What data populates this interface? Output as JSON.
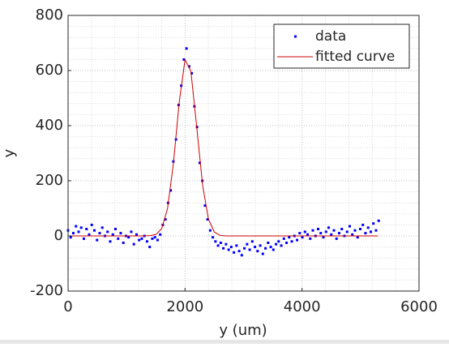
{
  "chart_data": {
    "type": "scatter",
    "xlabel": "y (um)",
    "ylabel": "y",
    "xlim": [
      0,
      6000
    ],
    "xticks": [
      0,
      2000,
      4000,
      6000
    ],
    "ylim": [
      -200,
      800
    ],
    "yticks": [
      -200,
      0,
      200,
      400,
      600,
      800
    ],
    "grid": true,
    "minor_grid": true,
    "legend": "upper right",
    "series": [
      {
        "name": "data",
        "color": "#0000ff",
        "style": "markers",
        "x": [
          0,
          45,
          90,
          135,
          180,
          225,
          270,
          315,
          360,
          405,
          450,
          495,
          540,
          585,
          630,
          675,
          720,
          765,
          810,
          855,
          900,
          945,
          990,
          1035,
          1080,
          1125,
          1170,
          1215,
          1260,
          1305,
          1350,
          1395,
          1440,
          1485,
          1530,
          1575,
          1620,
          1665,
          1710,
          1755,
          1800,
          1845,
          1890,
          1935,
          1980,
          2025,
          2070,
          2115,
          2160,
          2205,
          2250,
          2295,
          2340,
          2385,
          2430,
          2475,
          2520,
          2565,
          2610,
          2655,
          2700,
          2745,
          2790,
          2835,
          2880,
          2925,
          2970,
          3015,
          3060,
          3105,
          3150,
          3195,
          3240,
          3285,
          3330,
          3375,
          3420,
          3465,
          3510,
          3555,
          3600,
          3645,
          3690,
          3735,
          3780,
          3825,
          3870,
          3915,
          3960,
          4005,
          4050,
          4095,
          4140,
          4185,
          4230,
          4275,
          4320,
          4365,
          4410,
          4455,
          4500,
          4545,
          4590,
          4635,
          4680,
          4725,
          4770,
          4815,
          4860,
          4905,
          4950,
          4995,
          5040,
          5085,
          5130,
          5175,
          5220,
          5265,
          5310
        ],
        "values": [
          20,
          -5,
          10,
          35,
          15,
          30,
          -10,
          25,
          5,
          40,
          20,
          -15,
          10,
          30,
          0,
          15,
          -20,
          5,
          25,
          -10,
          10,
          -25,
          0,
          -5,
          15,
          -30,
          5,
          -15,
          -10,
          0,
          -20,
          -40,
          -10,
          -5,
          -15,
          5,
          40,
          60,
          120,
          165,
          270,
          350,
          475,
          545,
          640,
          680,
          615,
          590,
          470,
          395,
          265,
          200,
          110,
          60,
          20,
          -5,
          -20,
          -35,
          -25,
          -45,
          -30,
          -50,
          -40,
          -60,
          -35,
          -55,
          -70,
          -45,
          -30,
          -50,
          -20,
          -40,
          -55,
          -35,
          -65,
          -45,
          -25,
          -40,
          -50,
          -30,
          -20,
          -35,
          -10,
          -25,
          -5,
          -20,
          0,
          -15,
          10,
          -5,
          15,
          5,
          -10,
          20,
          0,
          25,
          10,
          -5,
          15,
          30,
          5,
          20,
          -10,
          10,
          25,
          0,
          15,
          35,
          5,
          20,
          -5,
          25,
          40,
          10,
          30,
          15,
          45,
          20,
          55
        ]
      },
      {
        "name": "fitted curve",
        "color": "#cc0000",
        "style": "line",
        "x": [
          0,
          100,
          200,
          300,
          400,
          500,
          600,
          700,
          800,
          900,
          1000,
          1100,
          1200,
          1300,
          1400,
          1500,
          1600,
          1700,
          1800,
          1900,
          2000,
          2100,
          2200,
          2300,
          2400,
          2500,
          2600,
          2700,
          2800,
          2900,
          3000,
          3100,
          3200,
          3300,
          3400,
          3500,
          3600,
          3700,
          3800,
          3900,
          4000,
          4100,
          4200,
          4300,
          4400,
          4500,
          4600,
          4700,
          4800,
          4900,
          5000,
          5100,
          5200,
          5300
        ],
        "values": [
          0,
          0,
          0,
          0,
          0,
          0,
          0,
          0,
          0,
          0,
          0,
          0,
          0,
          0,
          1,
          5,
          26,
          99,
          261,
          485,
          640,
          597,
          394,
          184,
          61,
          14,
          2,
          0,
          0,
          0,
          0,
          0,
          0,
          0,
          0,
          0,
          0,
          0,
          0,
          0,
          0,
          0,
          0,
          0,
          0,
          0,
          0,
          0,
          0,
          0,
          0,
          0,
          0,
          0
        ]
      }
    ]
  }
}
